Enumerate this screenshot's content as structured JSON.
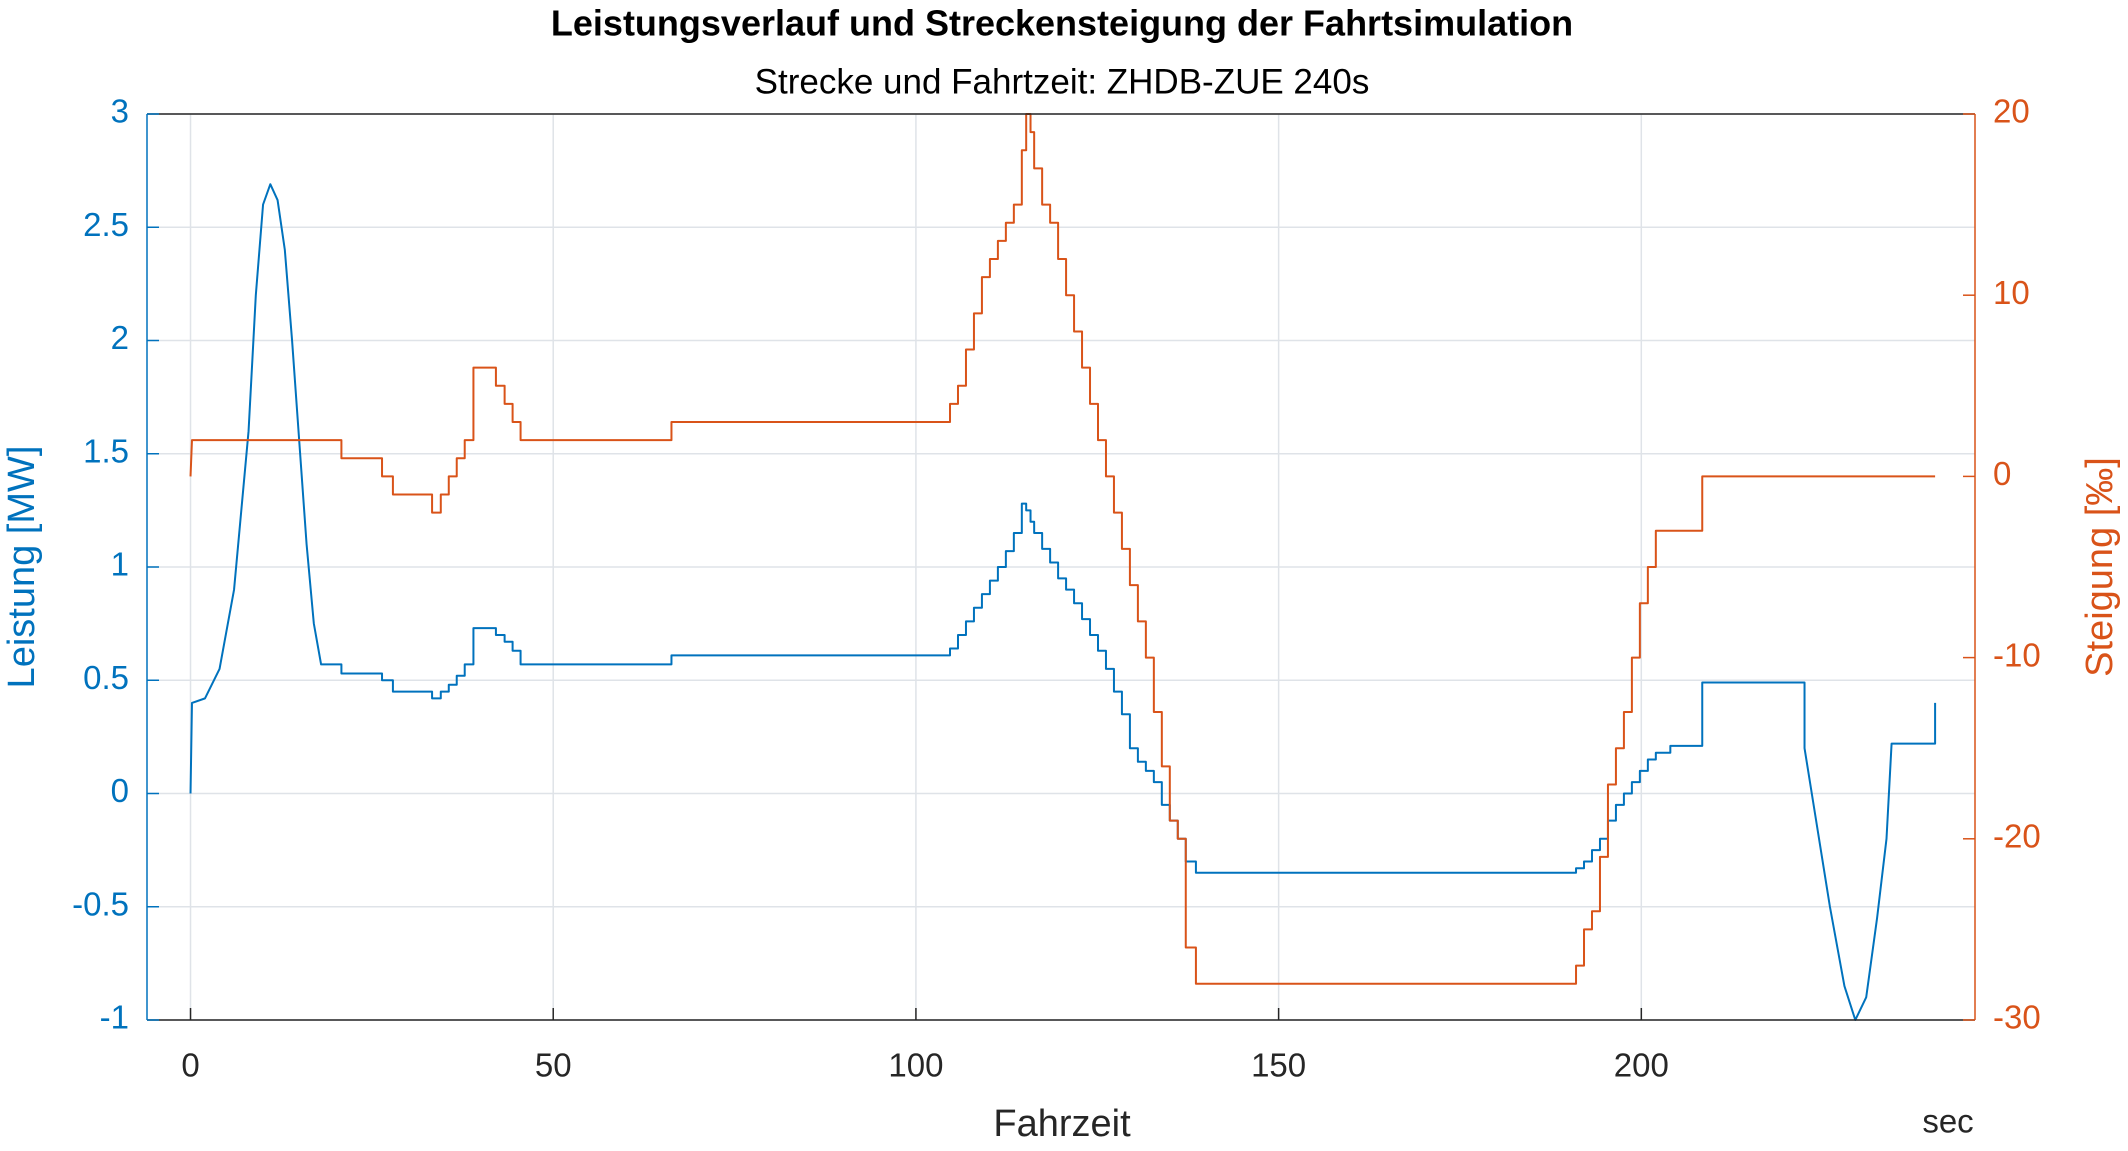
{
  "chart_data": {
    "type": "line",
    "title": "Leistungsverlauf und Streckensteigung der Fahrtsimulation",
    "subtitle": "Strecke und Fahrtzeit: ZHDB-ZUE 240s",
    "x_label": "Fahrzeit",
    "x_unit": "sec",
    "y_label": "Leistung [MW]",
    "y2_label": "Steigung [‰]",
    "xlim": [
      -6,
      246
    ],
    "xticks": [
      0,
      50,
      100,
      150,
      200
    ],
    "ylim": [
      -1,
      3
    ],
    "yticks": [
      -1,
      -0.5,
      0,
      0.5,
      1,
      1.5,
      2,
      2.5,
      3
    ],
    "y2lim": [
      -30,
      20
    ],
    "y2ticks": [
      -30,
      -20,
      -10,
      0,
      10,
      20
    ],
    "grid": true,
    "series": [
      {
        "name": "Leistung",
        "color": "#0072BD",
        "axis": "y",
        "x": [
          0,
          0.2,
          2,
          4,
          6,
          8,
          9,
          10,
          11,
          12,
          13,
          14,
          15,
          16,
          17,
          18,
          20.8,
          20.8,
          26.4,
          26.4,
          27.9,
          27.9,
          33.3,
          33.3,
          34.5,
          34.5,
          35.6,
          35.6,
          36.7,
          36.7,
          37.8,
          37.8,
          39,
          39,
          42.1,
          42.1,
          43.3,
          43.3,
          44.4,
          44.4,
          45.5,
          45.5,
          66.3,
          66.3,
          104.7,
          104.7,
          105.8,
          105.8,
          106.9,
          106.9,
          108,
          108,
          109.1,
          109.1,
          110.2,
          110.2,
          111.3,
          111.3,
          112.4,
          112.4,
          113.5,
          113.5,
          114.6,
          114.6,
          115.2,
          115.2,
          115.8,
          115.8,
          116.3,
          116.3,
          117.4,
          117.4,
          118.5,
          118.5,
          119.6,
          119.6,
          120.7,
          120.7,
          121.8,
          121.8,
          122.9,
          122.9,
          124,
          124,
          125.1,
          125.1,
          126.2,
          126.2,
          127.3,
          127.3,
          128.4,
          128.4,
          129.5,
          129.5,
          130.6,
          130.6,
          131.7,
          131.7,
          132.8,
          132.8,
          133.9,
          133.9,
          135,
          135,
          136.1,
          136.1,
          137.2,
          137.2,
          138.6,
          138.6,
          191,
          191,
          192.1,
          192.1,
          193.2,
          193.2,
          194.3,
          194.3,
          195.4,
          195.4,
          196.5,
          196.5,
          197.6,
          197.6,
          198.7,
          198.7,
          199.8,
          199.8,
          200.9,
          200.9,
          202,
          202,
          204,
          204,
          208.4,
          208.4,
          222.5,
          222.5,
          224,
          226,
          228,
          229.5,
          231,
          232.5,
          233.8,
          234.5,
          240.5,
          240.5
        ],
        "values": [
          0,
          0.4,
          0.42,
          0.55,
          0.9,
          1.6,
          2.2,
          2.6,
          2.69,
          2.62,
          2.4,
          2.0,
          1.55,
          1.1,
          0.75,
          0.57,
          0.57,
          0.53,
          0.53,
          0.5,
          0.5,
          0.45,
          0.45,
          0.42,
          0.42,
          0.45,
          0.45,
          0.48,
          0.48,
          0.52,
          0.52,
          0.57,
          0.57,
          0.73,
          0.73,
          0.7,
          0.7,
          0.67,
          0.67,
          0.63,
          0.63,
          0.57,
          0.57,
          0.61,
          0.61,
          0.64,
          0.64,
          0.7,
          0.7,
          0.76,
          0.76,
          0.82,
          0.82,
          0.88,
          0.88,
          0.94,
          0.94,
          1.0,
          1.0,
          1.07,
          1.07,
          1.15,
          1.15,
          1.28,
          1.28,
          1.25,
          1.25,
          1.2,
          1.2,
          1.15,
          1.15,
          1.08,
          1.08,
          1.02,
          1.02,
          0.95,
          0.95,
          0.9,
          0.9,
          0.84,
          0.84,
          0.77,
          0.77,
          0.7,
          0.7,
          0.63,
          0.63,
          0.55,
          0.55,
          0.45,
          0.45,
          0.35,
          0.35,
          0.2,
          0.2,
          0.14,
          0.14,
          0.1,
          0.1,
          0.05,
          0.05,
          -0.05,
          -0.05,
          -0.12,
          -0.12,
          -0.2,
          -0.2,
          -0.3,
          -0.3,
          -0.35,
          -0.35,
          -0.33,
          -0.33,
          -0.3,
          -0.3,
          -0.25,
          -0.25,
          -0.2,
          -0.2,
          -0.12,
          -0.12,
          -0.05,
          -0.05,
          0.0,
          0.0,
          0.05,
          0.05,
          0.1,
          0.1,
          0.15,
          0.15,
          0.18,
          0.18,
          0.21,
          0.21,
          0.49,
          0.49,
          0.2,
          -0.1,
          -0.5,
          -0.85,
          -1.0,
          -0.9,
          -0.55,
          -0.2,
          0.22,
          0.22,
          0.4
        ]
      },
      {
        "name": "Steigung",
        "color": "#D95319",
        "axis": "y2",
        "x": [
          0,
          0.2,
          20.8,
          20.8,
          26.4,
          26.4,
          27.9,
          27.9,
          33.3,
          33.3,
          34.5,
          34.5,
          35.6,
          35.6,
          36.7,
          36.7,
          37.8,
          37.8,
          39,
          39,
          42.1,
          42.1,
          43.3,
          43.3,
          44.4,
          44.4,
          45.5,
          45.5,
          66.3,
          66.3,
          104.7,
          104.7,
          105.8,
          105.8,
          106.9,
          106.9,
          108,
          108,
          109.1,
          109.1,
          110.2,
          110.2,
          111.3,
          111.3,
          112.4,
          112.4,
          113.5,
          113.5,
          114.6,
          114.6,
          115.2,
          115.2,
          115.8,
          115.8,
          116.3,
          116.3,
          117.4,
          117.4,
          118.5,
          118.5,
          119.6,
          119.6,
          120.7,
          120.7,
          121.8,
          121.8,
          122.9,
          122.9,
          124,
          124,
          125.1,
          125.1,
          126.2,
          126.2,
          127.3,
          127.3,
          128.4,
          128.4,
          129.5,
          129.5,
          130.6,
          130.6,
          131.7,
          131.7,
          132.8,
          132.8,
          133.9,
          133.9,
          135,
          135,
          136.1,
          136.1,
          137.2,
          137.2,
          138.6,
          138.6,
          191,
          191,
          192.1,
          192.1,
          193.2,
          193.2,
          194.3,
          194.3,
          195.4,
          195.4,
          196.5,
          196.5,
          197.6,
          197.6,
          198.7,
          198.7,
          199.8,
          199.8,
          200.9,
          200.9,
          202,
          202,
          208.4,
          208.4,
          240.5
        ],
        "values": [
          0,
          2,
          2,
          1,
          1,
          0,
          0,
          -1,
          -1,
          -2,
          -2,
          -1,
          -1,
          0,
          0,
          1,
          1,
          2,
          2,
          6,
          6,
          5,
          5,
          4,
          4,
          3,
          3,
          2,
          2,
          3,
          3,
          4,
          4,
          5,
          5,
          7,
          7,
          9,
          9,
          11,
          11,
          12,
          12,
          13,
          13,
          14,
          14,
          15,
          15,
          18,
          18,
          20,
          20,
          19,
          19,
          17,
          17,
          15,
          15,
          14,
          14,
          12,
          12,
          10,
          10,
          8,
          8,
          6,
          6,
          4,
          4,
          2,
          2,
          0,
          0,
          -2,
          -2,
          -4,
          -4,
          -6,
          -6,
          -8,
          -8,
          -10,
          -10,
          -13,
          -13,
          -16,
          -16,
          -19,
          -19,
          -20,
          -20,
          -26,
          -26,
          -28,
          -28,
          -27,
          -27,
          -25,
          -25,
          -24,
          -24,
          -21,
          -21,
          -17,
          -17,
          -15,
          -15,
          -13,
          -13,
          -10,
          -10,
          -7,
          -7,
          -5,
          -5,
          -3,
          -3,
          0,
          0
        ]
      }
    ]
  }
}
